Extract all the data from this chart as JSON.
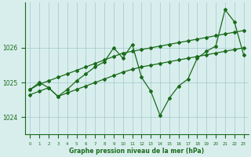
{
  "bg_color": "#d8eeed",
  "grid_color": "#a0c8c8",
  "line_color": "#1a6b1a",
  "marker_color": "#1a6b1a",
  "title": "Graphe pression niveau de la mer (hPa)",
  "title_color": "#1a6b1a",
  "tick_color": "#1a6b1a",
  "xlim": [
    -0.5,
    23.5
  ],
  "ylim": [
    1023.5,
    1027.3
  ],
  "yticks": [
    1024,
    1025,
    1026
  ],
  "hours": [
    0,
    1,
    2,
    3,
    4,
    5,
    6,
    7,
    8,
    9,
    10,
    11,
    12,
    13,
    14,
    15,
    16,
    17,
    18,
    19,
    20,
    21,
    22,
    23
  ],
  "line_zigzag": [
    1024.8,
    1025.0,
    1024.85,
    1024.6,
    1024.8,
    1025.05,
    1025.25,
    1025.45,
    1025.6,
    1026.0,
    1025.7,
    1026.1,
    1025.15,
    1024.75,
    1024.05,
    1024.55,
    1024.9,
    1025.1,
    1025.7,
    1025.9,
    1026.05,
    1027.1,
    1026.75,
    1025.8
  ],
  "line_upper": [
    1024.8,
    1024.95,
    1025.05,
    1025.15,
    1025.25,
    1025.35,
    1025.45,
    1025.55,
    1025.65,
    1025.75,
    1025.85,
    1025.9,
    1025.95,
    1026.0,
    1026.05,
    1026.1,
    1026.15,
    1026.2,
    1026.25,
    1026.3,
    1026.35,
    1026.4,
    1026.45,
    1026.5
  ],
  "line_lower": [
    1024.65,
    1024.75,
    1024.85,
    1024.6,
    1024.7,
    1024.8,
    1024.9,
    1025.0,
    1025.1,
    1025.2,
    1025.3,
    1025.38,
    1025.45,
    1025.5,
    1025.55,
    1025.6,
    1025.65,
    1025.7,
    1025.75,
    1025.8,
    1025.85,
    1025.9,
    1025.95,
    1026.0
  ]
}
